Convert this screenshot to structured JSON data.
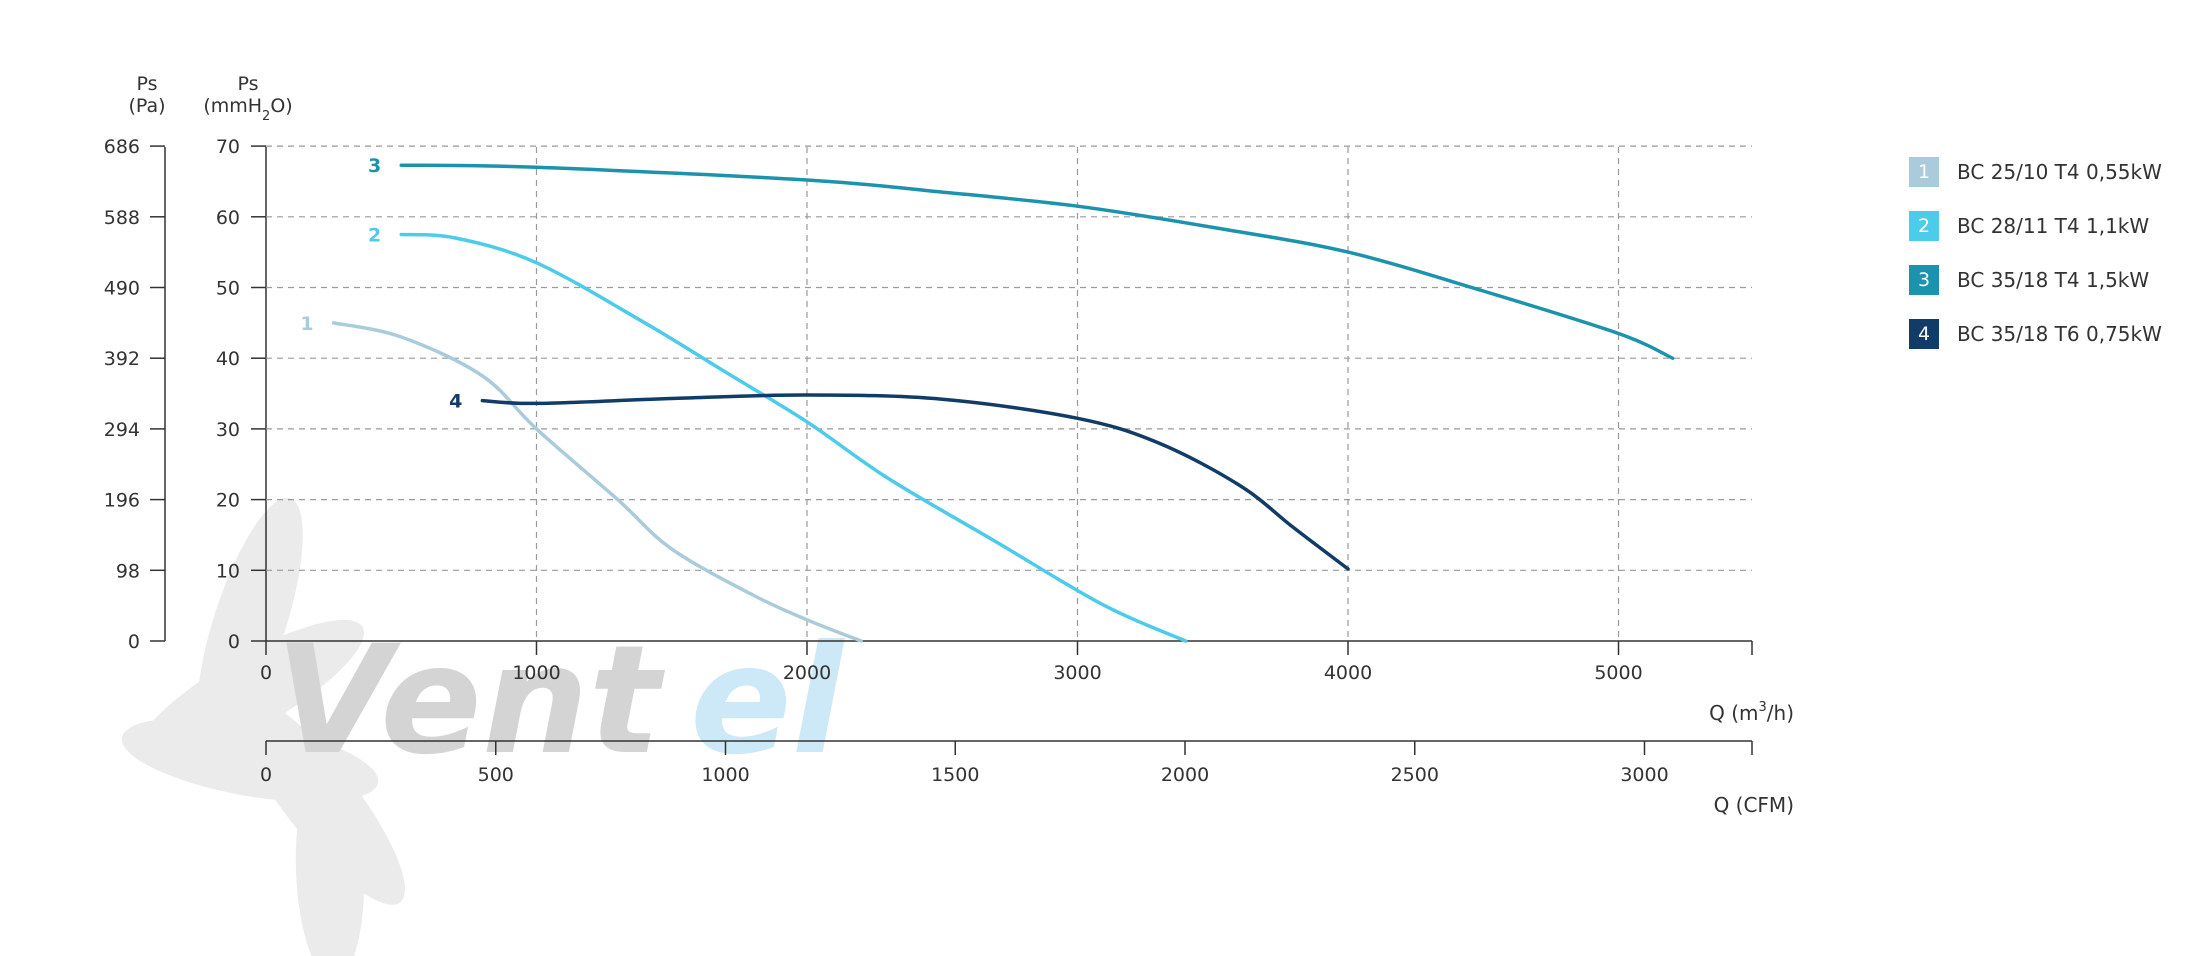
{
  "chart_data": {
    "type": "line",
    "axes": {
      "left_outer": {
        "label_top": "Ps",
        "label_bottom": "(Pa)",
        "ticks": [
          "686",
          "588",
          "490",
          "392",
          "294",
          "196",
          "98",
          "0"
        ]
      },
      "left_inner": {
        "label_top": "Ps",
        "label_bottom_prefix": "(mmH",
        "label_bottom_sub": "2",
        "label_bottom_suffix": "O)",
        "ticks": [
          "70",
          "60",
          "50",
          "40",
          "30",
          "20",
          "10",
          "0"
        ],
        "ylim": [
          0,
          70
        ]
      },
      "x_primary": {
        "label_prefix": "Q (m",
        "label_sup": "3",
        "label_suffix": "/h)",
        "ticks": [
          "0",
          "1000",
          "2000",
          "3000",
          "4000",
          "5000"
        ],
        "xlim": [
          0,
          5500
        ]
      },
      "x_secondary": {
        "label": "Q (CFM)",
        "ticks": [
          "0",
          "500",
          "1000",
          "1500",
          "2000",
          "2500",
          "3000"
        ],
        "xlim": [
          0,
          3237
        ]
      }
    },
    "grid": true,
    "legend_position": "right",
    "series": [
      {
        "id": "1",
        "name": "BC 25/10 T4 0,55kW",
        "color": "#a9cbdc",
        "points": [
          [
            250,
            45
          ],
          [
            500,
            43
          ],
          [
            800,
            37.5
          ],
          [
            1000,
            30
          ],
          [
            1300,
            20
          ],
          [
            1500,
            13
          ],
          [
            1800,
            6.5
          ],
          [
            2000,
            3
          ],
          [
            2200,
            0
          ]
        ]
      },
      {
        "id": "2",
        "name": "BC 28/11 T4 1,1kW",
        "color": "#4dcbea",
        "points": [
          [
            500,
            57.5
          ],
          [
            700,
            57
          ],
          [
            1000,
            53.5
          ],
          [
            1400,
            45
          ],
          [
            1700,
            38
          ],
          [
            2000,
            31
          ],
          [
            2300,
            23
          ],
          [
            2700,
            14
          ],
          [
            3100,
            5
          ],
          [
            3400,
            0
          ]
        ]
      },
      {
        "id": "3",
        "name": "BC 35/18 T4 1,5kW",
        "color": "#1c93ad",
        "points": [
          [
            500,
            67.3
          ],
          [
            1000,
            67
          ],
          [
            2000,
            65.2
          ],
          [
            2500,
            63.5
          ],
          [
            3000,
            61.5
          ],
          [
            3500,
            58.5
          ],
          [
            4000,
            55
          ],
          [
            4500,
            49.5
          ],
          [
            5000,
            43.5
          ],
          [
            5200,
            40
          ]
        ]
      },
      {
        "id": "4",
        "name": "BC 35/18 T6 0,75kW",
        "color": "#113c68",
        "points": [
          [
            800,
            34
          ],
          [
            1000,
            33.6
          ],
          [
            1500,
            34.3
          ],
          [
            2000,
            34.8
          ],
          [
            2500,
            34.2
          ],
          [
            3000,
            31.5
          ],
          [
            3300,
            28
          ],
          [
            3600,
            22
          ],
          [
            3800,
            16
          ],
          [
            4000,
            10.2
          ]
        ]
      }
    ]
  },
  "watermark": {
    "text_dark": "Vent",
    "text_light": "el"
  }
}
